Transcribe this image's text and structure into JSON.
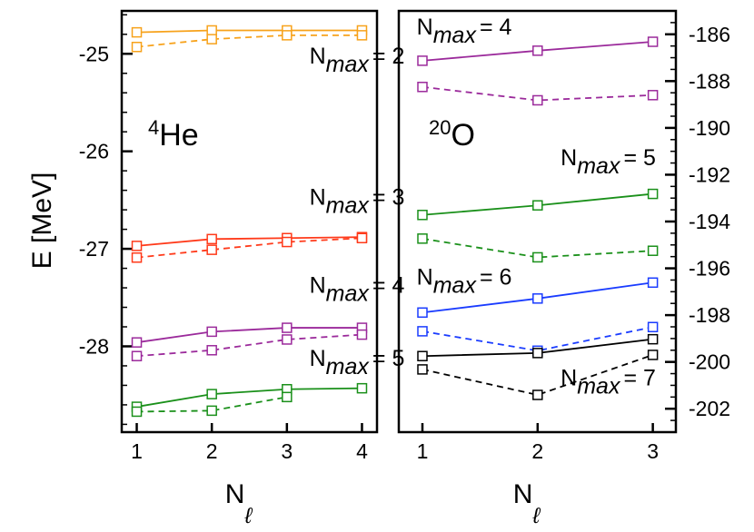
{
  "ylabel": "E [MeV]",
  "chart_data": [
    {
      "type": "line",
      "panel": "left",
      "nucleus": {
        "sup": "4",
        "name": "He"
      },
      "xlabel": {
        "main": "N",
        "sub": "ℓ"
      },
      "ylabel": "E [MeV]",
      "xlim": [
        0.8,
        4.2
      ],
      "ylim": [
        -28.88,
        -24.56
      ],
      "xticks": [
        1,
        2,
        3,
        4
      ],
      "yticks": [
        -25,
        -26,
        -27,
        -28
      ],
      "minor_ytick_step": 0.2,
      "y_axis_side": "left",
      "grid": false,
      "series": [
        {
          "group": "Nmax=2",
          "style": "solid",
          "color": "#f7a21b",
          "x": [
            1,
            2,
            3,
            4
          ],
          "y": [
            -24.78,
            -24.76,
            -24.76,
            -24.76
          ]
        },
        {
          "group": "Nmax=2",
          "style": "dashed",
          "color": "#f7a21b",
          "x": [
            1,
            2,
            3,
            4
          ],
          "y": [
            -24.93,
            -24.85,
            -24.81,
            -24.81
          ]
        },
        {
          "group": "Nmax=3",
          "style": "solid",
          "color": "#ff3a1a",
          "x": [
            1,
            2,
            3,
            4
          ],
          "y": [
            -26.97,
            -26.9,
            -26.89,
            -26.88
          ]
        },
        {
          "group": "Nmax=3",
          "style": "dashed",
          "color": "#ff3a1a",
          "x": [
            1,
            2,
            3,
            4
          ],
          "y": [
            -27.09,
            -27.01,
            -26.93,
            -26.89
          ]
        },
        {
          "group": "Nmax=4",
          "style": "solid",
          "color": "#9b2a9b",
          "x": [
            1,
            2,
            3,
            4
          ],
          "y": [
            -27.96,
            -27.85,
            -27.81,
            -27.81
          ]
        },
        {
          "group": "Nmax=4",
          "style": "dashed",
          "color": "#9b2a9b",
          "x": [
            1,
            2,
            3,
            4
          ],
          "y": [
            -28.1,
            -28.04,
            -27.93,
            -27.88
          ]
        },
        {
          "group": "Nmax=5",
          "style": "solid",
          "color": "#1a901a",
          "x": [
            1,
            2,
            3,
            4
          ],
          "y": [
            -28.62,
            -28.49,
            -28.44,
            -28.43
          ]
        },
        {
          "group": "Nmax=5",
          "style": "dashed",
          "color": "#1a901a",
          "x": [
            1,
            2,
            3
          ],
          "y": [
            -28.67,
            -28.66,
            -28.52
          ]
        }
      ],
      "annotations": [
        {
          "base": "N",
          "sub": "max",
          "text": "= 2",
          "x": 3.3,
          "y": -25.1
        },
        {
          "base": "N",
          "sub": "max",
          "text": "= 3",
          "x": 3.3,
          "y": -26.55
        },
        {
          "base": "N",
          "sub": "max",
          "text": "= 4",
          "x": 3.3,
          "y": -27.45
        },
        {
          "base": "N",
          "sub": "max",
          "text": "= 5",
          "x": 3.3,
          "y": -28.2
        }
      ]
    },
    {
      "type": "line",
      "panel": "right",
      "nucleus": {
        "sup": "20",
        "name": "O"
      },
      "xlabel": {
        "main": "N",
        "sub": "ℓ"
      },
      "xlim": [
        0.795,
        3.2
      ],
      "ylim": [
        -203,
        -185
      ],
      "xticks": [
        1,
        2,
        3
      ],
      "yticks": [
        -186,
        -188,
        -190,
        -192,
        -194,
        -196,
        -198,
        -200,
        -202
      ],
      "minor_ytick_step": 0.5,
      "y_axis_side": "right",
      "grid": false,
      "series": [
        {
          "group": "Nmax=4",
          "style": "solid",
          "color": "#9b2a9b",
          "x": [
            1,
            2,
            3
          ],
          "y": [
            -187.13,
            -186.7,
            -186.32
          ]
        },
        {
          "group": "Nmax=4",
          "style": "dashed",
          "color": "#9b2a9b",
          "x": [
            1,
            2,
            3
          ],
          "y": [
            -188.25,
            -188.82,
            -188.6
          ]
        },
        {
          "group": "Nmax=5",
          "style": "solid",
          "color": "#1a901a",
          "x": [
            1,
            2,
            3
          ],
          "y": [
            -193.72,
            -193.31,
            -192.82
          ]
        },
        {
          "group": "Nmax=5",
          "style": "dashed",
          "color": "#1a901a",
          "x": [
            1,
            2,
            3
          ],
          "y": [
            -194.73,
            -195.53,
            -195.25
          ]
        },
        {
          "group": "Nmax=6",
          "style": "solid",
          "color": "#1a3cff",
          "x": [
            1,
            2,
            3
          ],
          "y": [
            -197.89,
            -197.29,
            -196.61
          ]
        },
        {
          "group": "Nmax=6",
          "style": "dashed",
          "color": "#1a3cff",
          "x": [
            1,
            2,
            3
          ],
          "y": [
            -198.69,
            -199.52,
            -198.51
          ]
        },
        {
          "group": "Nmax=7",
          "style": "solid",
          "color": "#000000",
          "x": [
            1,
            2,
            3
          ],
          "y": [
            -199.75,
            -199.62,
            -199.03
          ]
        },
        {
          "group": "Nmax=7",
          "style": "dashed",
          "color": "#000000",
          "x": [
            1,
            2,
            3
          ],
          "y": [
            -200.32,
            -201.41,
            -199.7
          ]
        }
      ],
      "annotations": [
        {
          "base": "N",
          "sub": "max",
          "text": "= 4",
          "x": 0.95,
          "y": -186.0
        },
        {
          "base": "N",
          "sub": "max",
          "text": "= 5",
          "x": 2.2,
          "y": -191.6
        },
        {
          "base": "N",
          "sub": "max",
          "text": "= 6",
          "x": 0.95,
          "y": -196.7
        },
        {
          "base": "N",
          "sub": "max",
          "text": "= 7",
          "x": 2.2,
          "y": -201.0
        }
      ]
    }
  ]
}
